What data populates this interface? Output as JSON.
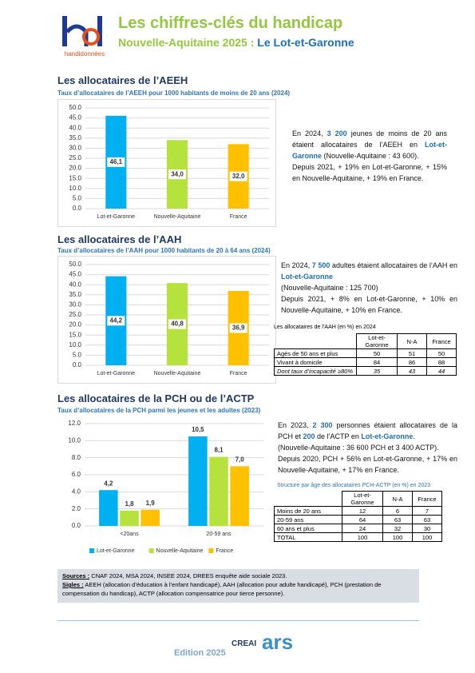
{
  "header": {
    "logo": "handidonnées",
    "title": "Les chiffres-clés du handicap",
    "subtitle": "Nouvelle-Aquitaine 2025 :",
    "territory": "Le Lot-et-Garonne"
  },
  "sections": [
    {
      "title": "Les allocataires de l’AEEH",
      "text": [
        [
          "En 2024, ",
          "3 200",
          " jeunes de moins de 20 ans étaient allocataires de l’AEEH en ",
          "Lot-et-Garonne",
          " (Nouvelle-Aquitaine : 43 600)."
        ],
        [
          "Depuis 2021, + 19% en Lot-et-Garonne, + 15% en Nouvelle-Aquitaine, + 19% en France."
        ]
      ]
    },
    {
      "title": "Les allocataires de l’AAH",
      "text": [
        [
          "En 2024, ",
          "7 500",
          " adultes étaient allocataires de l’AAH en ",
          "Lot-et-Garonne"
        ],
        [
          "(Nouvelle-Aquitaine : 125 700)"
        ],
        [
          "Depuis 2021, + 8% en Lot-et-Garonne, + 10% en Nouvelle-Aquitaine, + 10% en France."
        ]
      ]
    },
    {
      "title": "Les allocataires de la PCH ou de l’ACTP",
      "text": [
        [
          "En 2023, ",
          "2 300",
          " personnes étaient allocataires de la PCH et ",
          "200",
          " de l’ACTP en ",
          "Lot-et-Garonne",
          "."
        ],
        [
          "(Nouvelle-Aquitaine : 36 600 PCH et 3 400 ACTP)."
        ],
        [
          "Depuis 2020, PCH + 56% en Lot-et-Garonne, + 17% en Nouvelle-Aquitaine, + 17% en France."
        ]
      ]
    }
  ],
  "chart_data": [
    {
      "type": "bar",
      "title": "Taux d’allocataires de l’AEEH pour 1000 habitants de moins de 20 ans (2024)",
      "categories": [
        "Lot-et-Garonne",
        "Nouvelle-Aquitaine",
        "France"
      ],
      "values": [
        46.1,
        34.0,
        32.0
      ],
      "value_labels": [
        "46,1",
        "34,0",
        "32,0"
      ],
      "colors": [
        "#00b0f0",
        "#b5e23c",
        "#ffc000"
      ],
      "ylim": [
        0,
        50
      ],
      "yticks": [
        {
          "value": 0,
          "label": "0.0"
        },
        {
          "value": 5,
          "label": "5.0"
        },
        {
          "value": 10,
          "label": "10.0"
        },
        {
          "value": 15,
          "label": "15.0"
        },
        {
          "value": 20,
          "label": "20.0"
        },
        {
          "value": 25,
          "label": "25.0"
        },
        {
          "value": 30,
          "label": "30.0"
        },
        {
          "value": 35,
          "label": "35.0"
        },
        {
          "value": 40,
          "label": "40.0"
        },
        {
          "value": 45,
          "label": "45.0"
        },
        {
          "value": 50,
          "label": "50.0"
        }
      ],
      "grid": true
    },
    {
      "type": "bar",
      "title": "Taux d’allocataires de l’AAH pour 1000 habitants de 20 à 64 ans (2024)",
      "categories": [
        "Lot-et-Garonne",
        "Nouvelle-Aquitaine",
        "France"
      ],
      "values": [
        44.2,
        40.8,
        36.9
      ],
      "value_labels": [
        "44,2",
        "40,8",
        "36,9"
      ],
      "colors": [
        "#00b0f0",
        "#b5e23c",
        "#ffc000"
      ],
      "ylim": [
        0,
        50
      ],
      "yticks": [
        {
          "value": 0,
          "label": "0.0"
        },
        {
          "value": 5,
          "label": "5.0"
        },
        {
          "value": 10,
          "label": "10.0"
        },
        {
          "value": 15,
          "label": "15.0"
        },
        {
          "value": 20,
          "label": "20.0"
        },
        {
          "value": 25,
          "label": "25.0"
        },
        {
          "value": 30,
          "label": "30.0"
        },
        {
          "value": 35,
          "label": "35.0"
        },
        {
          "value": 40,
          "label": "40.0"
        },
        {
          "value": 45,
          "label": "45.0"
        },
        {
          "value": 50,
          "label": "50.0"
        }
      ],
      "grid": true
    },
    {
      "type": "bar",
      "title": "Taux d’allocataires de la PCH parmi les jeunes et les adultes (2023)",
      "categories": [
        "<20ans",
        "20-59 ans"
      ],
      "series": [
        {
          "name": "Lot-et-Garonne",
          "color": "#00b0f0",
          "values": [
            4.2,
            10.5
          ],
          "value_labels": [
            "4,2",
            "10,5"
          ]
        },
        {
          "name": "Nouvelle-Aquitaine",
          "color": "#b5e23c",
          "values": [
            1.8,
            8.1
          ],
          "value_labels": [
            "1,8",
            "8,1"
          ]
        },
        {
          "name": "France",
          "color": "#ffc000",
          "values": [
            1.9,
            7.0
          ],
          "value_labels": [
            "1,9",
            "7,0"
          ]
        }
      ],
      "ylim": [
        0,
        12
      ],
      "yticks": [
        {
          "value": 0,
          "label": "0.0"
        },
        {
          "value": 2,
          "label": "2.0"
        },
        {
          "value": 4,
          "label": "4.0"
        },
        {
          "value": 6,
          "label": "6.0"
        },
        {
          "value": 8,
          "label": "8.0"
        },
        {
          "value": 10,
          "label": "10.0"
        },
        {
          "value": 12,
          "label": "12.0"
        }
      ],
      "grid": true,
      "legend": "bottom"
    }
  ],
  "tables": [
    {
      "title": "Les allocataires de l’AAH (en %) en 2024",
      "header": [
        "Lot-et-Garonne",
        "N-A",
        "France"
      ],
      "rows": [
        [
          "Agés de 50 ans et plus",
          "50",
          "51",
          "50"
        ],
        [
          "Vivant à domicile",
          "84",
          "86",
          "88"
        ],
        [
          "Dont taux d’incapacité ≥80%",
          "35",
          "43",
          "44"
        ]
      ]
    },
    {
      "title": "Structure par âge des allocataires PCH-ACTP (en %) en 2023",
      "header": [
        "Lot-et-Garonne",
        "N-A",
        "France"
      ],
      "rows": [
        [
          "Moins de 20 ans",
          "12",
          "6",
          "7"
        ],
        [
          "20-59 ans",
          "64",
          "63",
          "63"
        ],
        [
          "60 ans et plus",
          "24",
          "32",
          "30"
        ],
        [
          "TOTAL",
          "100",
          "100",
          "100"
        ]
      ]
    }
  ],
  "footer": {
    "sources_label": "Sources :",
    "sources": " CNAF 2024, MSA 2024, INSEE 2024, DREES enquête aide sociale 2023.",
    "sigles_label": "Sigles :",
    "sigles": " AEEH (allocation d’éducation à l’enfant handicapé), AAH (allocation pour adulte handicapé), PCH (prestation de compensation du handicap), ACTP (allocation compensatrice pour tierce personne).",
    "edition": "Edition 2025",
    "partner_logos": [
      "CREAI",
      "ars"
    ]
  }
}
